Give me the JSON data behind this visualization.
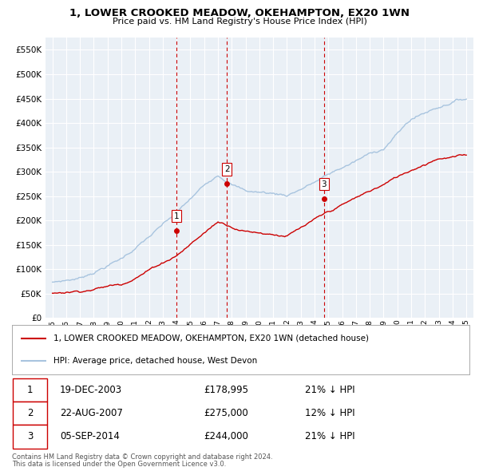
{
  "title": "1, LOWER CROOKED MEADOW, OKEHAMPTON, EX20 1WN",
  "subtitle": "Price paid vs. HM Land Registry's House Price Index (HPI)",
  "legend_property": "1, LOWER CROOKED MEADOW, OKEHAMPTON, EX20 1WN (detached house)",
  "legend_hpi": "HPI: Average price, detached house, West Devon",
  "footer1": "Contains HM Land Registry data © Crown copyright and database right 2024.",
  "footer2": "This data is licensed under the Open Government Licence v3.0.",
  "transactions": [
    {
      "num": 1,
      "date": "19-DEC-2003",
      "price": "£178,995",
      "pct": "21% ↓ HPI",
      "year": 2003.97
    },
    {
      "num": 2,
      "date": "22-AUG-2007",
      "price": "£275,000",
      "pct": "12% ↓ HPI",
      "year": 2007.64
    },
    {
      "num": 3,
      "date": "05-SEP-2014",
      "price": "£244,000",
      "pct": "21% ↓ HPI",
      "year": 2014.68
    }
  ],
  "trans_prices": [
    178995,
    275000,
    244000
  ],
  "hpi_color": "#a8c4df",
  "price_color": "#cc0000",
  "vline_color": "#cc0000",
  "dot_color": "#cc0000",
  "ylim": [
    0,
    575000
  ],
  "yticks": [
    0,
    50000,
    100000,
    150000,
    200000,
    250000,
    300000,
    350000,
    400000,
    450000,
    500000,
    550000
  ],
  "xlim": [
    1994.5,
    2025.5
  ],
  "xtick_years": [
    1995,
    1996,
    1997,
    1998,
    1999,
    2000,
    2001,
    2002,
    2003,
    2004,
    2005,
    2006,
    2007,
    2008,
    2009,
    2010,
    2011,
    2012,
    2013,
    2014,
    2015,
    2016,
    2017,
    2018,
    2019,
    2020,
    2021,
    2022,
    2023,
    2024,
    2025
  ],
  "bg_color": "#eaf0f6",
  "grid_color": "#ffffff",
  "hpi_base_points_x": [
    1995,
    1997,
    2000,
    2004,
    2007,
    2009,
    2012,
    2016,
    2019,
    2021,
    2024,
    2025
  ],
  "hpi_base_points_y": [
    72000,
    82000,
    125000,
    215000,
    295000,
    265000,
    258000,
    315000,
    355000,
    415000,
    455000,
    462000
  ],
  "price_base_points_x": [
    1995,
    1997,
    2000,
    2004,
    2007,
    2009,
    2012,
    2016,
    2019,
    2021,
    2023,
    2025
  ],
  "price_base_points_y": [
    50000,
    58000,
    75000,
    140000,
    210000,
    195000,
    190000,
    245000,
    285000,
    315000,
    345000,
    350000
  ]
}
